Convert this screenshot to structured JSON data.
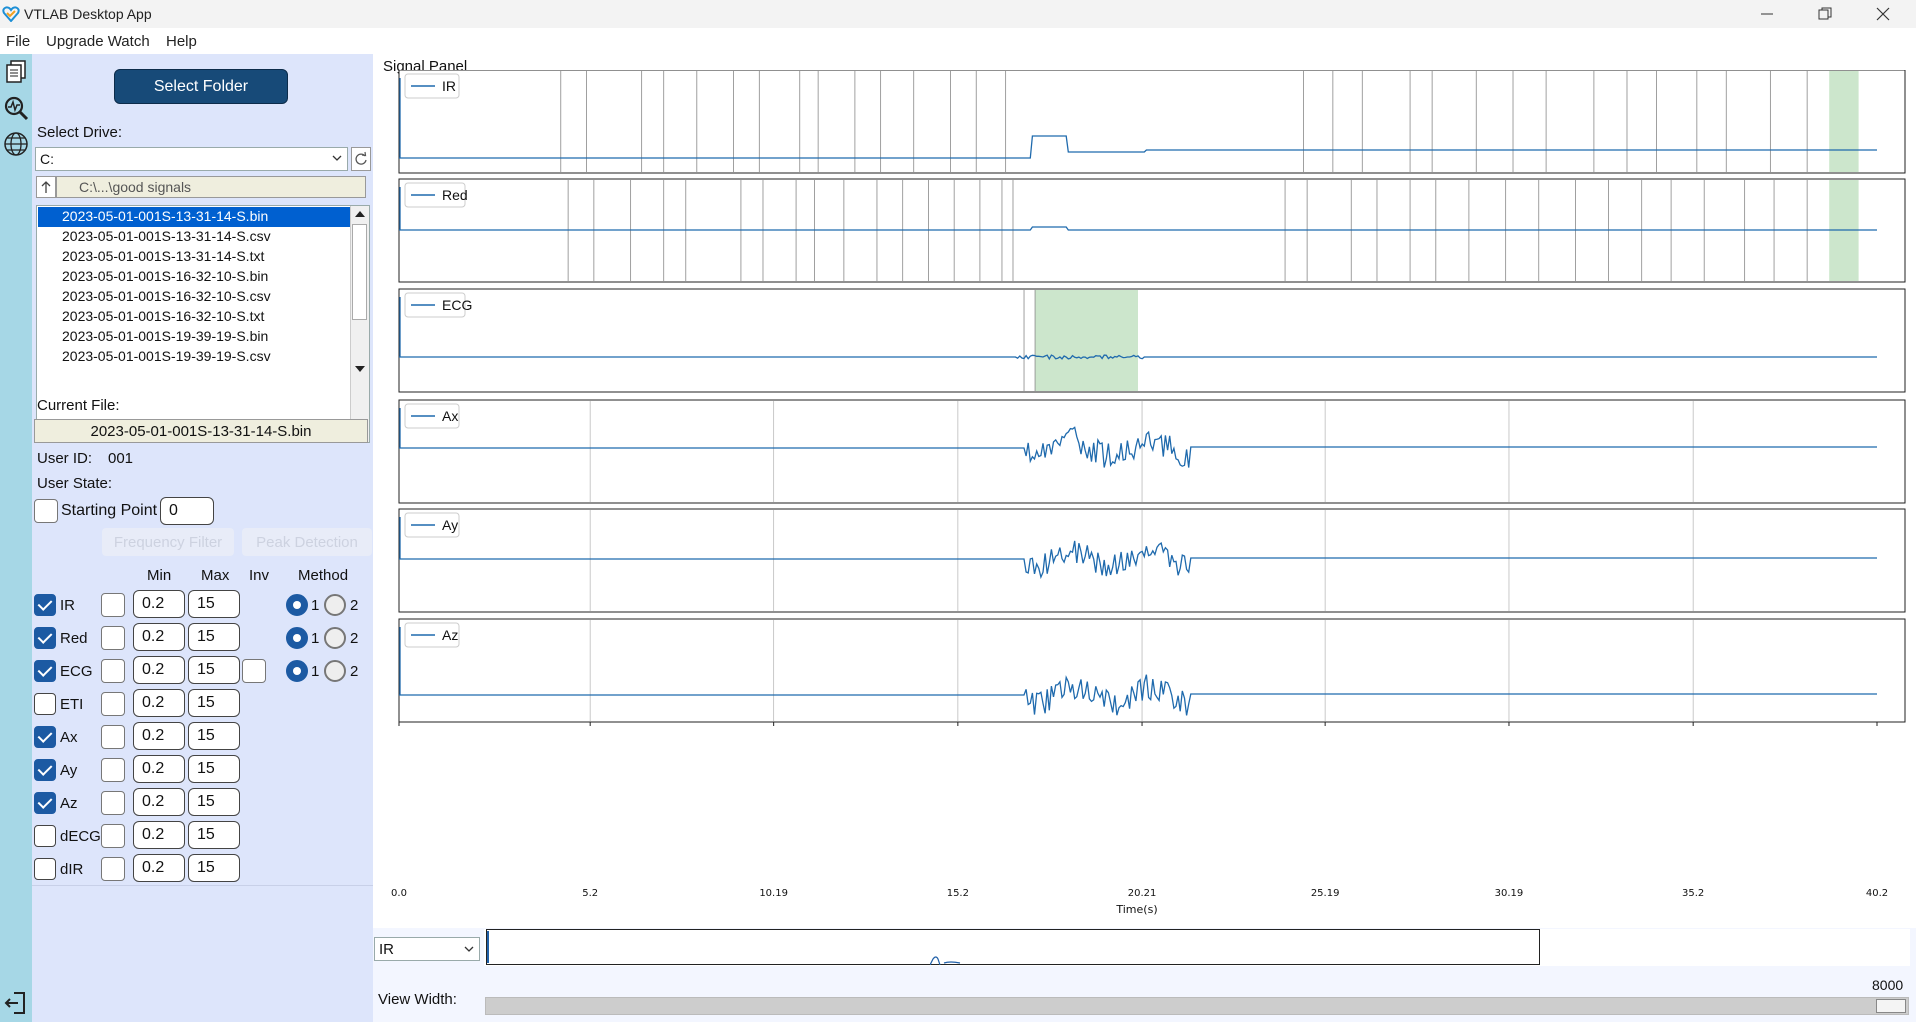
{
  "app": {
    "title": "VTLAB Desktop App"
  },
  "menu": [
    "File",
    "Upgrade Watch",
    "Help"
  ],
  "left": {
    "select_folder": "Select Folder",
    "select_drive_label": "Select Drive:",
    "drive": "C:",
    "path": "C:\\...\\good signals",
    "files": [
      "2023-05-01-001S-13-31-14-S.bin",
      "2023-05-01-001S-13-31-14-S.csv",
      "2023-05-01-001S-13-31-14-S.txt",
      "2023-05-01-001S-16-32-10-S.bin",
      "2023-05-01-001S-16-32-10-S.csv",
      "2023-05-01-001S-16-32-10-S.txt",
      "2023-05-01-001S-19-39-19-S.bin",
      "2023-05-01-001S-19-39-19-S.csv"
    ],
    "selected_file_index": 0,
    "current_file_label": "Current File:",
    "current_file": "2023-05-01-001S-13-31-14-S.bin",
    "user_id_label": "User ID:",
    "user_id": "001",
    "user_state_label": "User State:",
    "starting_point_label": "Starting Point",
    "starting_point": "0",
    "frequency_filter": "Frequency Filter",
    "peak_detection": "Peak Detection",
    "headers": {
      "min": "Min",
      "max": "Max",
      "inv": "Inv",
      "method": "Method"
    },
    "channels": [
      {
        "name": "IR",
        "checked": true,
        "min": "0.2",
        "max": "15",
        "inv": false,
        "method": 1
      },
      {
        "name": "Red",
        "checked": true,
        "min": "0.2",
        "max": "15",
        "inv": false,
        "method": 1
      },
      {
        "name": "ECG",
        "checked": true,
        "min": "0.2",
        "max": "15",
        "inv": true,
        "method": 1
      },
      {
        "name": "ETI",
        "checked": false,
        "min": "0.2",
        "max": "15"
      },
      {
        "name": "Ax",
        "checked": true,
        "min": "0.2",
        "max": "15"
      },
      {
        "name": "Ay",
        "checked": true,
        "min": "0.2",
        "max": "15"
      },
      {
        "name": "Az",
        "checked": true,
        "min": "0.2",
        "max": "15"
      },
      {
        "name": "dECG",
        "checked": false,
        "min": "0.2",
        "max": "15"
      },
      {
        "name": "dIR",
        "checked": false,
        "min": "0.2",
        "max": "15"
      }
    ],
    "method_options": [
      "1",
      "2"
    ]
  },
  "signal_panel": {
    "title": "Signal Panel"
  },
  "chart_data": {
    "type": "line",
    "xlabel": "Time(s)",
    "xlim": [
      0,
      40.2
    ],
    "xticks": [
      "0.0",
      "5.2",
      "10.19",
      "15.2",
      "20.21",
      "25.19",
      "30.19",
      "35.2",
      "40.2"
    ],
    "xtick_values": [
      0,
      5.2,
      10.19,
      15.2,
      20.21,
      25.19,
      30.19,
      35.2,
      40.2
    ],
    "series": [
      {
        "name": "IR",
        "peak_lines": [
          4.4,
          5.1,
          6.6,
          7.2,
          8.1,
          9.1,
          9.8,
          10.9,
          11.4,
          12.4,
          13.1,
          14.0,
          15.0,
          15.7,
          16.5,
          24.6,
          25.4,
          26.2,
          27.5,
          28.1,
          29.3,
          30.3,
          31.2,
          32.5,
          33.4,
          34.2,
          35.3,
          36.1,
          37.3,
          38.3
        ],
        "shaded": [
          38.9,
          39.7
        ]
      },
      {
        "name": "Red",
        "peak_lines": [
          4.6,
          5.3,
          6.3,
          7.2,
          7.8,
          9.3,
          9.9,
          10.8,
          11.3,
          12.1,
          13.0,
          13.7,
          14.4,
          15.1,
          15.8,
          16.4,
          16.7,
          24.1,
          24.7,
          25.9,
          26.6,
          27.5,
          28.2,
          29.1,
          30.1,
          31.0,
          32.0,
          32.9,
          33.8,
          34.6,
          35.5,
          36.6,
          37.4,
          38.3
        ],
        "shaded": [
          38.9,
          39.7
        ]
      },
      {
        "name": "ECG",
        "peak_lines": [
          17.0,
          17.3
        ],
        "shaded": [
          17.3,
          20.1
        ]
      },
      {
        "name": "Ax",
        "peak_lines": []
      },
      {
        "name": "Ay",
        "peak_lines": []
      },
      {
        "name": "Az",
        "peak_lines": []
      }
    ]
  },
  "bottom": {
    "channel": "IR",
    "view_width_label": "View Width:",
    "view_width": "8000"
  }
}
